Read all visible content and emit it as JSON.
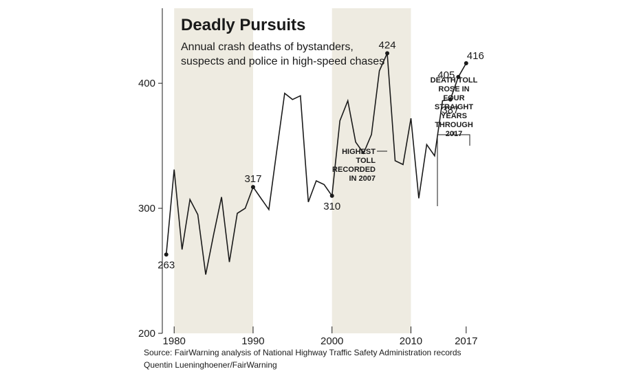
{
  "chart_data": {
    "type": "line",
    "title": "Deadly Pursuits",
    "subtitle": [
      "Annual crash deaths of bystanders,",
      "suspects and police in high-speed chases"
    ],
    "xlabel": "",
    "ylabel": "",
    "x": [
      1979,
      1980,
      1981,
      1982,
      1983,
      1984,
      1985,
      1986,
      1987,
      1988,
      1989,
      1990,
      1991,
      1992,
      1993,
      1994,
      1995,
      1996,
      1997,
      1998,
      1999,
      2000,
      2001,
      2002,
      2003,
      2004,
      2005,
      2006,
      2007,
      2008,
      2009,
      2010,
      2011,
      2012,
      2013,
      2014,
      2015,
      2016,
      2017
    ],
    "series": [
      {
        "name": "",
        "values": [
          263,
          331,
          267,
          307,
          295,
          247,
          279,
          309,
          257,
          296,
          300,
          317,
          308,
          299,
          346,
          392,
          387,
          390,
          305,
          322,
          319,
          310,
          370,
          386,
          353,
          344,
          359,
          410,
          424,
          338,
          335,
          372,
          308,
          351,
          342,
          386,
          387,
          405,
          416
        ]
      }
    ],
    "xlim": [
      1978.5,
      2018.5
    ],
    "ylim": [
      200,
      460
    ],
    "x_ticks": [
      "1980",
      "1990",
      "2000",
      "2010",
      "2017"
    ],
    "y_ticks": [
      "200",
      "300",
      "400"
    ],
    "grid": false,
    "line_color": "#1a1a1a",
    "shade_color": "#eeebe1",
    "shaded_ranges": [
      [
        1980,
        1990
      ],
      [
        2000,
        2010
      ]
    ],
    "point_labels": [
      {
        "year": 1979,
        "label": "263",
        "anchor": "below"
      },
      {
        "year": 1990,
        "label": "317",
        "anchor": "above"
      },
      {
        "year": 2000,
        "label": "310",
        "anchor": "below"
      },
      {
        "year": 2007,
        "label": "424",
        "anchor": "above"
      },
      {
        "year": 2015,
        "label": "387",
        "anchor": "below"
      },
      {
        "year": 2016,
        "label": "405",
        "anchor": "left"
      },
      {
        "year": 2017,
        "label": "416",
        "anchor": "right"
      }
    ],
    "annotations": {
      "highest": [
        "HIGHEST",
        "TOLL",
        "RECORDED",
        "IN 2007"
      ],
      "rose": [
        "DEATH TOLL",
        "ROSE IN",
        "FOUR",
        "STRAIGHT",
        "YEARS",
        "THROUGH",
        "2017"
      ]
    },
    "source": "Source: FairWarning analysis of  National Highway Traffic Safety Administration records",
    "credit": "Quentin Lueninghoener/FairWarning"
  }
}
